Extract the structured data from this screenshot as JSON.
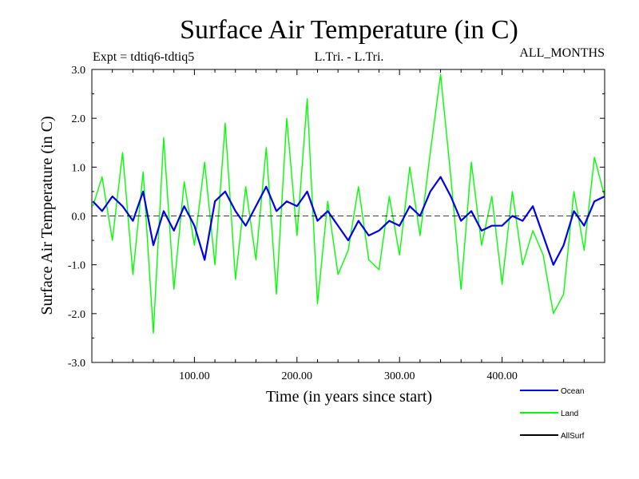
{
  "chart_data": {
    "type": "line",
    "title": "Surface Air Temperature (in C)",
    "subtitle_left": "Expt = tdtiq6-tdtiq5",
    "subtitle_center": "L.Tri. - L.Tri.",
    "subtitle_right": "ALL_MONTHS",
    "xlabel": "Time (in years since start)",
    "ylabel": "Surface Air Temperature (in C)",
    "xlim": [
      0,
      500
    ],
    "ylim": [
      -3.0,
      3.0
    ],
    "x_ticks": [
      100,
      200,
      300,
      400
    ],
    "x_tick_labels": [
      "100.00",
      "200.00",
      "300.00",
      "400.00"
    ],
    "y_ticks": [
      -3,
      -2,
      -1,
      0,
      1,
      2,
      3
    ],
    "y_tick_labels": [
      "-3.0",
      "-2.0",
      "-1.0",
      "0.0",
      "1.0",
      "2.0",
      "3.0"
    ],
    "zero_line": true,
    "legend_position": "bottom-right",
    "series": [
      {
        "name": "Land",
        "color": "#00ff00",
        "x": [
          1,
          10,
          20,
          30,
          40,
          50,
          60,
          70,
          80,
          90,
          100,
          110,
          120,
          130,
          140,
          150,
          160,
          170,
          180,
          190,
          200,
          210,
          220,
          230,
          240,
          250,
          260,
          270,
          280,
          290,
          300,
          310,
          320,
          330,
          340,
          350,
          360,
          370,
          380,
          390,
          400,
          410,
          420,
          430,
          440,
          450,
          460,
          470,
          480,
          490,
          500
        ],
        "values": [
          0.2,
          0.8,
          -0.5,
          1.3,
          -1.2,
          0.9,
          -2.4,
          1.6,
          -1.5,
          0.7,
          -0.6,
          1.1,
          -1.0,
          1.9,
          -1.3,
          0.6,
          -0.9,
          1.4,
          -1.6,
          2.0,
          -0.4,
          2.4,
          -1.8,
          0.3,
          -1.2,
          -0.7,
          0.6,
          -0.9,
          -1.1,
          0.4,
          -0.8,
          1.0,
          -0.4,
          1.3,
          2.9,
          0.8,
          -1.5,
          1.1,
          -0.6,
          0.4,
          -1.4,
          0.5,
          -1.0,
          -0.3,
          -0.8,
          -2.0,
          -1.6,
          0.5,
          -0.7,
          1.2,
          0.4
        ]
      },
      {
        "name": "Ocean",
        "color": "#0000ee",
        "x": [
          1,
          10,
          20,
          30,
          40,
          50,
          60,
          70,
          80,
          90,
          100,
          110,
          120,
          130,
          140,
          150,
          160,
          170,
          180,
          190,
          200,
          210,
          220,
          230,
          240,
          250,
          260,
          270,
          280,
          290,
          300,
          310,
          320,
          330,
          340,
          350,
          360,
          370,
          380,
          390,
          400,
          410,
          420,
          430,
          440,
          450,
          460,
          470,
          480,
          490,
          500
        ],
        "values": [
          0.3,
          0.1,
          0.4,
          0.2,
          -0.1,
          0.5,
          -0.6,
          0.1,
          -0.3,
          0.2,
          -0.2,
          -0.9,
          0.3,
          0.5,
          0.1,
          -0.2,
          0.2,
          0.6,
          0.1,
          0.3,
          0.2,
          0.5,
          -0.1,
          0.1,
          -0.2,
          -0.5,
          -0.1,
          -0.4,
          -0.3,
          -0.1,
          -0.2,
          0.2,
          0.0,
          0.5,
          0.8,
          0.4,
          -0.1,
          0.1,
          -0.3,
          -0.2,
          -0.2,
          0.0,
          -0.1,
          0.2,
          -0.4,
          -1.0,
          -0.6,
          0.1,
          -0.2,
          0.3,
          0.4
        ]
      },
      {
        "name": "AllSurf",
        "color": "#000000",
        "x": [],
        "values": []
      }
    ]
  }
}
